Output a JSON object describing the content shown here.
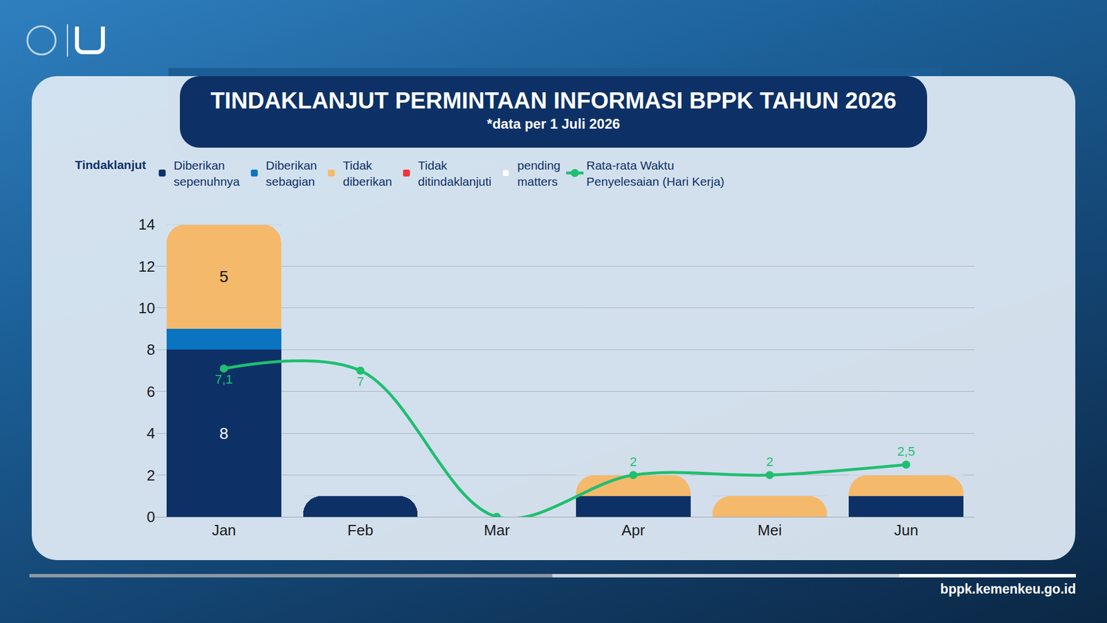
{
  "title": "TINDAKLANJUT PERMINTAAN INFORMASI BPPK TAHUN 2026",
  "subtitle": "*data per 1 Juli 2026",
  "footer": "bppk.kemenkeu.go.id",
  "chart_data": {
    "type": "bar",
    "stacked": true,
    "legend": "top",
    "legend_title": "Tindaklanjut",
    "grid": true,
    "data_labels": true,
    "categories": [
      "Jan",
      "Feb",
      "Mar",
      "Apr",
      "Mei",
      "Jun"
    ],
    "ylim": [
      0,
      14
    ],
    "yticks": [
      0,
      2,
      4,
      6,
      8,
      10,
      12,
      14
    ],
    "series": [
      {
        "name": "Diberikan sepenuhnya",
        "color": "#0d3166",
        "values": [
          8,
          1,
          0,
          1,
          0,
          1
        ],
        "value_labels": [
          "8",
          null,
          null,
          null,
          null,
          null
        ]
      },
      {
        "name": "Diberikan sebagian",
        "color": "#0a74c0",
        "values": [
          1,
          0,
          0,
          0,
          0,
          0
        ]
      },
      {
        "name": "Tidak diberikan",
        "color": "#f5b96b",
        "values": [
          5,
          0,
          0,
          1,
          1,
          1
        ],
        "value_labels": [
          "5",
          null,
          null,
          null,
          null,
          null
        ]
      },
      {
        "name": "Tidak ditindaklanjuti",
        "color": "#f2343a",
        "values": [
          0,
          0,
          0,
          0,
          0,
          0
        ]
      },
      {
        "name": "pending matters",
        "color": "#ffffff",
        "values": [
          0,
          0,
          0,
          0,
          0,
          0
        ]
      },
      {
        "name": "Rata-rata Waktu Penyelesaian (Hari Kerja)",
        "type": "line",
        "color": "#1fbf70",
        "marker": "circle",
        "line_style": "smooth",
        "values": [
          7.1,
          7,
          0,
          2,
          2,
          2.5
        ],
        "value_labels": [
          "7,1",
          "7",
          null,
          "2",
          "2",
          "2,5"
        ]
      }
    ]
  }
}
